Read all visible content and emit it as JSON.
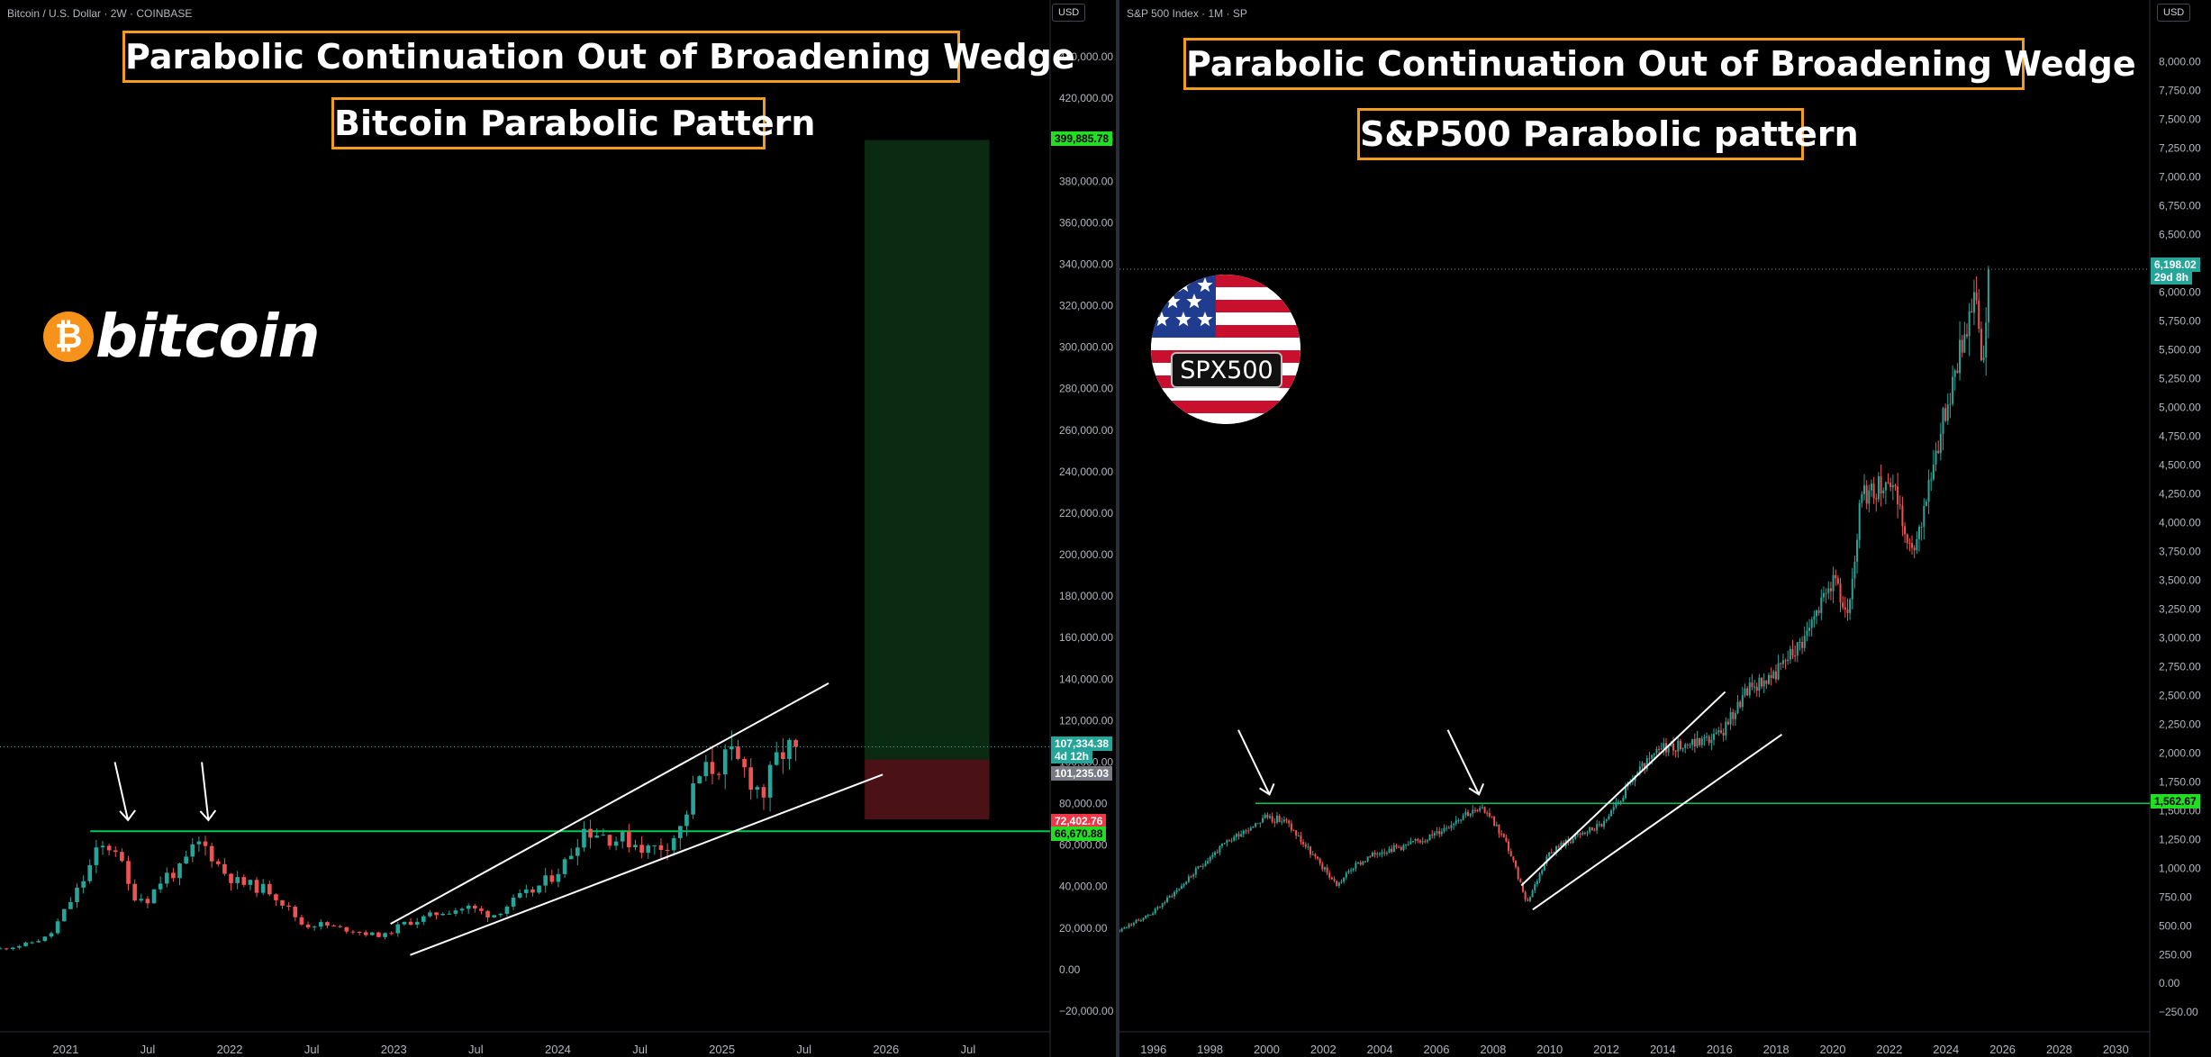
{
  "left_chart": {
    "symbol": "Bitcoin / U.S. Dollar · 2W · COINBASE",
    "currency": "USD",
    "title_main": "Parabolic Continuation Out of Broadening Wedge",
    "title_sub": "Bitcoin Parabolic Pattern",
    "logo_text": "bitcoin",
    "logo_glyph": "₿",
    "price_tags": {
      "target": "399,885.78",
      "last": "107,334.38",
      "countdown": "4d 12h",
      "prev_close": "101,235.03",
      "stop": "72,402.76",
      "resistance": "66,670.88"
    }
  },
  "right_chart": {
    "symbol": "S&P 500 Index · 1M · SP",
    "currency": "USD",
    "title_main": "Parabolic Continuation Out of Broadening Wedge",
    "title_sub": "S&P500 Parabolic pattern",
    "logo_text": "SPX500",
    "price_tags": {
      "last": "6,198.02",
      "countdown": "29d 8h",
      "resistance": "1,562.67"
    }
  },
  "colors": {
    "up": "#26a69a",
    "down": "#ef5350",
    "title_border": "#f39c1e",
    "support_line": "#00c853",
    "target_zone": "#0b2a12",
    "stop_zone": "#4a1116"
  },
  "chart_data": [
    {
      "type": "candlestick",
      "title": "Bitcoin / U.S. Dollar · 2W · COINBASE",
      "y_ticks": [
        -20000,
        0,
        20000,
        40000,
        60000,
        80000,
        100000,
        120000,
        140000,
        160000,
        180000,
        200000,
        220000,
        240000,
        260000,
        280000,
        300000,
        320000,
        340000,
        360000,
        380000,
        400000,
        420000,
        440000
      ],
      "ylim": [
        -30000,
        450000
      ],
      "x_ticks": [
        "2021",
        "Jul",
        "2022",
        "Jul",
        "2023",
        "Jul",
        "2024",
        "Jul",
        "2025",
        "Jul",
        "2026",
        "Jul"
      ],
      "x_tick_years": [
        2021.0,
        2021.5,
        2022.0,
        2022.5,
        2023.0,
        2023.5,
        2024.0,
        2024.5,
        2025.0,
        2025.5,
        2026.0,
        2026.5
      ],
      "xlim": [
        2020.6,
        2027.0
      ],
      "series": [
        {
          "x": [
            2020.6,
            2020.75,
            2020.9,
            2021.0,
            2021.1,
            2021.2,
            2021.3,
            2021.4,
            2021.5,
            2021.6,
            2021.7,
            2021.8,
            2021.87,
            2021.95,
            2022.05,
            2022.15,
            2022.25,
            2022.35,
            2022.45,
            2022.55,
            2022.65,
            2022.75,
            2022.85,
            2022.95,
            2023.05,
            2023.15,
            2023.3,
            2023.45,
            2023.6,
            2023.75,
            2023.85,
            2023.95,
            2024.05,
            2024.15,
            2024.25,
            2024.35,
            2024.45,
            2024.55,
            2024.65,
            2024.75,
            2024.85,
            2024.95,
            2025.05,
            2025.15,
            2025.25,
            2025.35,
            2025.45
          ],
          "y": [
            10000,
            12000,
            16000,
            29000,
            42000,
            58000,
            60000,
            36000,
            34000,
            45000,
            48000,
            61000,
            58000,
            48000,
            42000,
            40000,
            38000,
            30000,
            21000,
            22000,
            20000,
            19000,
            17000,
            16500,
            22000,
            24000,
            28000,
            30000,
            26000,
            34000,
            38000,
            44000,
            52000,
            68000,
            66000,
            63000,
            62000,
            58000,
            60000,
            68000,
            92000,
            98000,
            102000,
            95000,
            84000,
            104000,
            107334
          ]
        }
      ],
      "annotations": {
        "target": 399885.78,
        "stop": 72402.76,
        "resistance": 66670.88,
        "last": 107334.38,
        "prev_close": 101235.03
      }
    },
    {
      "type": "candlestick",
      "title": "S&P 500 Index · 1M · SP",
      "y_ticks": [
        -250,
        0,
        250,
        500,
        750,
        1000,
        1250,
        1500,
        1750,
        2000,
        2250,
        2500,
        2750,
        3000,
        3250,
        3500,
        3750,
        4000,
        4250,
        4500,
        4750,
        5000,
        5250,
        5500,
        5750,
        6000,
        6250,
        6500,
        6750,
        7000,
        7250,
        7500,
        7750,
        8000
      ],
      "ylim": [
        -420,
        8300
      ],
      "x_ticks": [
        "1996",
        "1998",
        "2000",
        "2002",
        "2004",
        "2006",
        "2008",
        "2010",
        "2012",
        "2014",
        "2016",
        "2018",
        "2020",
        "2022",
        "2024",
        "2026",
        "2028",
        "2030"
      ],
      "x_tick_years": [
        1996,
        1998,
        2000,
        2002,
        2004,
        2006,
        2008,
        2010,
        2012,
        2014,
        2016,
        2018,
        2020,
        2022,
        2024,
        2026,
        2028,
        2030
      ],
      "xlim": [
        1994.8,
        2031.2
      ],
      "series": [
        {
          "x": [
            1994.8,
            1996,
            1997,
            1998,
            1999,
            2000,
            2000.7,
            2001.5,
            2002.5,
            2003,
            2004,
            2005,
            2006,
            2007,
            2007.8,
            2008.5,
            2009.2,
            2010,
            2011,
            2012,
            2013,
            2014,
            2015,
            2016,
            2017,
            2018,
            2019,
            2020,
            2020.5,
            2021,
            2022,
            2022.8,
            2023.5,
            2024,
            2024.6,
            2025,
            2025.3,
            2025.5
          ],
          "y": [
            460,
            620,
            850,
            1100,
            1300,
            1450,
            1400,
            1150,
            850,
            1000,
            1150,
            1200,
            1300,
            1480,
            1500,
            1200,
            700,
            1150,
            1280,
            1400,
            1800,
            2050,
            2080,
            2150,
            2550,
            2700,
            3000,
            3500,
            3200,
            4200,
            4400,
            3700,
            4450,
            5000,
            5600,
            6000,
            5300,
            6198
          ]
        }
      ],
      "annotations": {
        "resistance": 1562.67,
        "last": 6198.02
      }
    }
  ]
}
